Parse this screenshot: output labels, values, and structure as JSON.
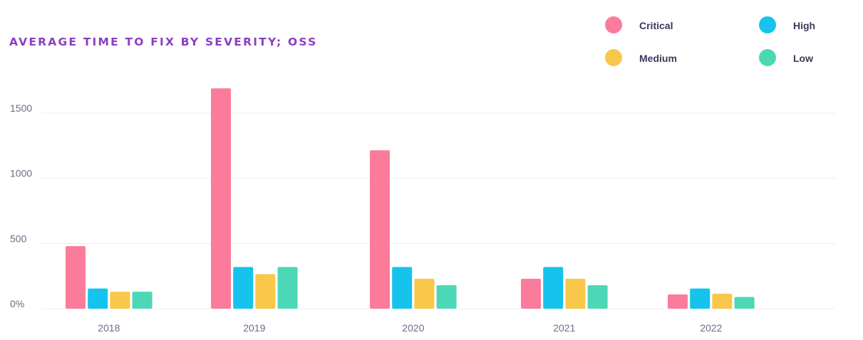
{
  "chart_data": {
    "type": "bar",
    "title": "AVERAGE TIME TO FIX BY SEVERITY; OSS",
    "xlabel": "",
    "ylabel": "",
    "categories": [
      "2018",
      "2019",
      "2020",
      "2021",
      "2022"
    ],
    "series": [
      {
        "name": "Critical",
        "color": "#fb7c9a",
        "values": [
          480,
          1690,
          1215,
          230,
          110
        ]
      },
      {
        "name": "High",
        "color": "#15c3ec",
        "values": [
          155,
          320,
          320,
          320,
          155
        ]
      },
      {
        "name": "Medium",
        "color": "#f9c74a",
        "values": [
          130,
          265,
          230,
          230,
          115
        ]
      },
      {
        "name": "Low",
        "color": "#4cd7b6",
        "values": [
          130,
          320,
          180,
          180,
          90
        ]
      }
    ],
    "y_ticks": [
      "0%",
      "500",
      "1000",
      "1500"
    ],
    "ylim": [
      0,
      1750
    ],
    "grid": true,
    "legend_position": "top-right"
  }
}
